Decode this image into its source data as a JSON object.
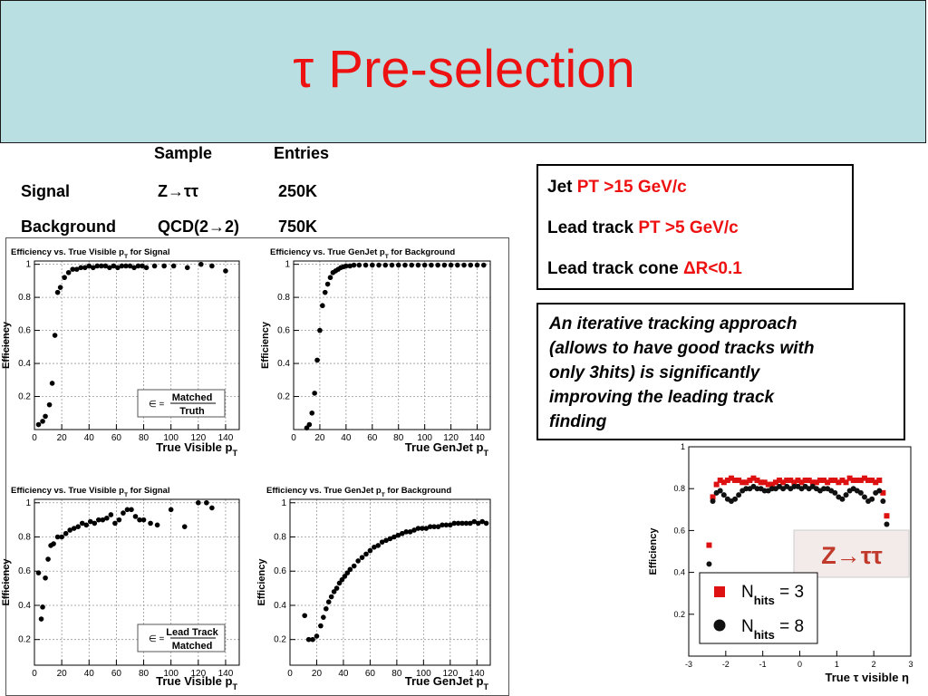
{
  "title": {
    "tau": "τ",
    "text": "Pre-selection"
  },
  "samples": {
    "header_sample": "Sample",
    "header_entries": "Entries",
    "rows": [
      {
        "name": "Signal",
        "sample": "Z→ττ",
        "entries": "250K"
      },
      {
        "name": "Background",
        "sample": "QCD(2→2)",
        "entries": "750K"
      }
    ]
  },
  "cuts": [
    {
      "prefix": "Jet ",
      "cut": "PT >15 GeV/c"
    },
    {
      "prefix": "Lead track ",
      "cut": "PT >5 GeV/c"
    },
    {
      "prefix": "Lead track cone ",
      "cut": "ΔR<0.1"
    }
  ],
  "note": {
    "lines": [
      "An iterative tracking approach",
      "(allows to have good tracks with",
      "only 3hits) is   significantly",
      "improving the leading  track",
      "finding"
    ]
  },
  "formula_labels": {
    "eps": "∈ =",
    "top1": "Matched",
    "bottom1": "Truth",
    "top2": "Lead Track",
    "bottom2": "Matched"
  },
  "colors": {
    "title": "#ee1111",
    "header_bg": "#b9dfe3",
    "red_marker": "#dd1111"
  },
  "chart_data": [
    {
      "type": "scatter",
      "title": "Efficiency vs. True Visible pT for Signal",
      "xlabel": "True Visible pT",
      "ylabel": "Efficiency",
      "xlim": [
        0,
        150
      ],
      "ylim": [
        0,
        1.02
      ],
      "xticks": [
        0,
        20,
        40,
        60,
        80,
        100,
        120,
        140
      ],
      "yticks": [
        0.2,
        0.4,
        0.6,
        0.8,
        1
      ],
      "ytick_labels": [
        "0.2",
        "0.4",
        "0.6",
        "0.8",
        "1"
      ],
      "series": [
        {
          "x": [
            3,
            6,
            8,
            11,
            13,
            15,
            17,
            19,
            22,
            25,
            28,
            31,
            34,
            37,
            40,
            43,
            46,
            49,
            52,
            55,
            58,
            61,
            64,
            67,
            70,
            73,
            76,
            79,
            82,
            88,
            95,
            102,
            112,
            122,
            130,
            140
          ],
          "y": [
            0.03,
            0.05,
            0.08,
            0.15,
            0.28,
            0.57,
            0.83,
            0.86,
            0.92,
            0.95,
            0.97,
            0.97,
            0.98,
            0.98,
            0.99,
            0.98,
            0.99,
            0.99,
            0.99,
            0.98,
            0.99,
            0.98,
            0.99,
            0.99,
            0.99,
            0.98,
            0.99,
            0.99,
            0.98,
            0.99,
            0.99,
            0.99,
            0.98,
            1.0,
            0.99,
            0.96
          ]
        }
      ]
    },
    {
      "type": "scatter",
      "title": "Efficiency vs. True GenJet pT for Background",
      "xlabel": "True GenJet pT",
      "ylabel": "Efficiency",
      "xlim": [
        0,
        150
      ],
      "ylim": [
        0,
        1.02
      ],
      "xticks": [
        0,
        20,
        40,
        60,
        80,
        100,
        120,
        140
      ],
      "yticks": [
        0.2,
        0.4,
        0.6,
        0.8,
        1
      ],
      "ytick_labels": [
        "0.2",
        "0.4",
        "0.6",
        "0.8",
        "1"
      ],
      "series": [
        {
          "x": [
            10,
            12,
            14,
            16,
            18,
            20,
            22,
            24,
            26,
            28,
            30,
            32,
            34,
            36,
            38,
            40,
            43,
            46,
            50,
            55,
            60,
            65,
            70,
            75,
            80,
            85,
            90,
            95,
            100,
            105,
            110,
            115,
            120,
            125,
            130,
            135,
            140,
            145
          ],
          "y": [
            0.01,
            0.03,
            0.1,
            0.22,
            0.42,
            0.6,
            0.75,
            0.83,
            0.88,
            0.92,
            0.95,
            0.96,
            0.97,
            0.98,
            0.985,
            0.99,
            0.99,
            0.995,
            0.995,
            0.995,
            0.995,
            0.995,
            0.995,
            0.995,
            0.995,
            0.995,
            0.995,
            0.995,
            0.995,
            0.995,
            0.995,
            0.995,
            0.995,
            0.995,
            0.995,
            0.995,
            0.995,
            0.995
          ]
        }
      ]
    },
    {
      "type": "scatter",
      "title": "Efficiency vs. True Visible pT for Signal",
      "xlabel": "True Visible pT",
      "ylabel": "Efficiency",
      "xlim": [
        0,
        150
      ],
      "ylim": [
        0.05,
        1.02
      ],
      "xticks": [
        0,
        20,
        40,
        60,
        80,
        100,
        120,
        140
      ],
      "yticks": [
        0.2,
        0.4,
        0.6,
        0.8,
        1
      ],
      "ytick_labels": [
        "0.2",
        "0.4",
        "0.6",
        "0.8",
        "1"
      ],
      "series": [
        {
          "x": [
            3,
            5,
            6,
            8,
            10,
            12,
            14,
            17,
            20,
            23,
            26,
            29,
            32,
            35,
            38,
            41,
            44,
            47,
            50,
            53,
            56,
            59,
            62,
            65,
            68,
            71,
            74,
            77,
            80,
            85,
            90,
            100,
            110,
            120,
            126,
            130
          ],
          "y": [
            0.59,
            0.32,
            0.39,
            0.56,
            0.67,
            0.75,
            0.76,
            0.8,
            0.8,
            0.82,
            0.84,
            0.85,
            0.86,
            0.88,
            0.87,
            0.89,
            0.88,
            0.9,
            0.9,
            0.91,
            0.93,
            0.88,
            0.9,
            0.94,
            0.96,
            0.96,
            0.92,
            0.9,
            0.9,
            0.88,
            0.87,
            0.96,
            0.86,
            1.0,
            1.0,
            0.97
          ]
        }
      ]
    },
    {
      "type": "scatter",
      "title": "Efficiency vs. True GenJet pT for Background",
      "xlabel": "True GenJet pT",
      "ylabel": "Efficiency",
      "xlim": [
        0,
        150
      ],
      "ylim": [
        0.05,
        1.02
      ],
      "xticks": [
        0,
        20,
        40,
        60,
        80,
        100,
        120,
        140
      ],
      "yticks": [
        0.2,
        0.4,
        0.6,
        0.8,
        1
      ],
      "ytick_labels": [
        "0.2",
        "0.4",
        "0.6",
        "0.8",
        "1"
      ],
      "series": [
        {
          "x": [
            11,
            14,
            17,
            20,
            23,
            25,
            27,
            29,
            31,
            33,
            35,
            37,
            39,
            41,
            43,
            45,
            48,
            51,
            54,
            57,
            60,
            63,
            66,
            69,
            72,
            75,
            78,
            81,
            84,
            87,
            90,
            93,
            96,
            99,
            102,
            105,
            108,
            111,
            114,
            117,
            120,
            123,
            126,
            129,
            132,
            135,
            138,
            141,
            144,
            147
          ],
          "y": [
            0.34,
            0.2,
            0.2,
            0.22,
            0.28,
            0.33,
            0.38,
            0.42,
            0.45,
            0.48,
            0.5,
            0.53,
            0.55,
            0.57,
            0.59,
            0.61,
            0.63,
            0.66,
            0.68,
            0.7,
            0.72,
            0.74,
            0.75,
            0.77,
            0.78,
            0.79,
            0.8,
            0.81,
            0.82,
            0.83,
            0.83,
            0.84,
            0.85,
            0.85,
            0.85,
            0.86,
            0.86,
            0.86,
            0.87,
            0.87,
            0.87,
            0.88,
            0.88,
            0.88,
            0.88,
            0.88,
            0.89,
            0.88,
            0.89,
            0.88
          ]
        }
      ]
    },
    {
      "type": "scatter",
      "xlabel": "True τ visible η",
      "ylabel": "Efficiency",
      "xlim": [
        -3,
        3
      ],
      "ylim": [
        0,
        1.0
      ],
      "xticks": [
        -3,
        -2,
        -1,
        0,
        1,
        2,
        3
      ],
      "yticks": [
        0.2,
        0.4,
        0.6,
        0.8,
        1
      ],
      "ytick_labels": [
        "0.2",
        "0.4",
        "0.6",
        "0.8",
        "1"
      ],
      "annotation": "Z→ττ",
      "series": [
        {
          "name": "Nhits = 3",
          "color": "#dd1111",
          "marker": "square",
          "x": [
            -2.45,
            -2.35,
            -2.25,
            -2.15,
            -2.05,
            -1.95,
            -1.85,
            -1.75,
            -1.65,
            -1.55,
            -1.45,
            -1.35,
            -1.25,
            -1.15,
            -1.05,
            -0.95,
            -0.85,
            -0.75,
            -0.65,
            -0.55,
            -0.45,
            -0.35,
            -0.25,
            -0.15,
            -0.05,
            0.05,
            0.15,
            0.25,
            0.35,
            0.45,
            0.55,
            0.65,
            0.75,
            0.85,
            0.95,
            1.05,
            1.15,
            1.25,
            1.35,
            1.45,
            1.55,
            1.65,
            1.75,
            1.85,
            1.95,
            2.05,
            2.15,
            2.25,
            2.35
          ],
          "y": [
            0.53,
            0.76,
            0.82,
            0.84,
            0.83,
            0.84,
            0.85,
            0.84,
            0.84,
            0.83,
            0.83,
            0.84,
            0.85,
            0.84,
            0.83,
            0.83,
            0.82,
            0.82,
            0.83,
            0.84,
            0.83,
            0.84,
            0.84,
            0.83,
            0.84,
            0.83,
            0.84,
            0.84,
            0.83,
            0.83,
            0.84,
            0.84,
            0.83,
            0.84,
            0.84,
            0.83,
            0.84,
            0.83,
            0.85,
            0.84,
            0.84,
            0.84,
            0.85,
            0.84,
            0.84,
            0.83,
            0.84,
            0.78,
            0.67
          ]
        },
        {
          "name": "Nhits = 8",
          "color": "#111111",
          "marker": "circle",
          "x": [
            -2.45,
            -2.35,
            -2.25,
            -2.15,
            -2.05,
            -1.95,
            -1.85,
            -1.75,
            -1.65,
            -1.55,
            -1.45,
            -1.35,
            -1.25,
            -1.15,
            -1.05,
            -0.95,
            -0.85,
            -0.75,
            -0.65,
            -0.55,
            -0.45,
            -0.35,
            -0.25,
            -0.15,
            -0.05,
            0.05,
            0.15,
            0.25,
            0.35,
            0.45,
            0.55,
            0.65,
            0.75,
            0.85,
            0.95,
            1.05,
            1.15,
            1.25,
            1.35,
            1.45,
            1.55,
            1.65,
            1.75,
            1.85,
            1.95,
            2.05,
            2.15,
            2.25,
            2.35
          ],
          "y": [
            0.44,
            0.74,
            0.78,
            0.79,
            0.77,
            0.75,
            0.74,
            0.75,
            0.77,
            0.79,
            0.8,
            0.8,
            0.81,
            0.8,
            0.8,
            0.79,
            0.79,
            0.8,
            0.8,
            0.81,
            0.8,
            0.81,
            0.8,
            0.81,
            0.81,
            0.8,
            0.81,
            0.8,
            0.81,
            0.8,
            0.79,
            0.8,
            0.8,
            0.79,
            0.78,
            0.76,
            0.75,
            0.77,
            0.79,
            0.8,
            0.79,
            0.78,
            0.76,
            0.74,
            0.75,
            0.78,
            0.79,
            0.74,
            0.63
          ]
        }
      ]
    }
  ]
}
